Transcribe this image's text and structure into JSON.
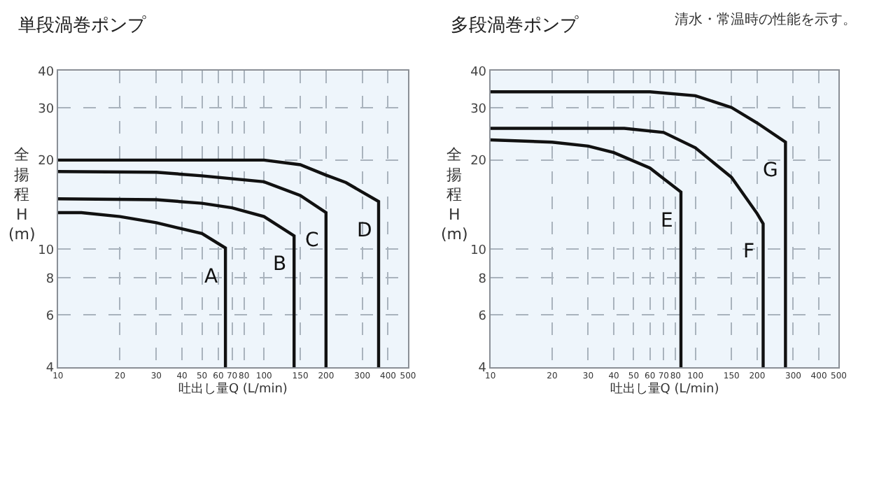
{
  "chart_data": [
    {
      "type": "line",
      "title": "単段渦巻ポンプ",
      "xlabel": "吐出し量Q (L/min)",
      "ylabel": "全揚程H(m)",
      "log": "xy",
      "grid": true,
      "line_style": "solid",
      "marker": "none",
      "legend": false,
      "xlim": [
        10,
        500
      ],
      "ylim": [
        4,
        40
      ],
      "xticks": [
        10,
        20,
        30,
        40,
        50,
        60,
        70,
        80,
        100,
        150,
        200,
        300,
        400,
        500
      ],
      "yticks": [
        4,
        6,
        8,
        10,
        20,
        30,
        40
      ],
      "series": [
        {
          "name": "A",
          "color": "#111111",
          "x": [
            10,
            13,
            20,
            30,
            50,
            65,
            65
          ],
          "values": [
            13.3,
            13.3,
            12.9,
            12.3,
            11.3,
            10.1,
            4
          ]
        },
        {
          "name": "B",
          "color": "#111111",
          "x": [
            10,
            30,
            50,
            70,
            100,
            140,
            140
          ],
          "values": [
            14.8,
            14.7,
            14.3,
            13.8,
            12.9,
            11.1,
            4
          ]
        },
        {
          "name": "C",
          "color": "#111111",
          "x": [
            10,
            30,
            50,
            100,
            150,
            200,
            200
          ],
          "values": [
            18.3,
            18.2,
            17.7,
            16.9,
            15.2,
            13.3,
            4
          ]
        },
        {
          "name": "D",
          "color": "#111111",
          "x": [
            10,
            100,
            150,
            200,
            250,
            300,
            360,
            360
          ],
          "values": [
            20,
            20,
            19.3,
            17.8,
            16.8,
            15.6,
            14.5,
            4
          ]
        }
      ]
    },
    {
      "type": "line",
      "title": "多段渦巻ポンプ",
      "xlabel": "吐出し量Q (L/min)",
      "ylabel": "全揚程H(m)",
      "log": "xy",
      "grid": true,
      "line_style": "solid",
      "marker": "none",
      "legend": false,
      "xlim": [
        10,
        500
      ],
      "ylim": [
        4,
        40
      ],
      "xticks": [
        10,
        20,
        30,
        40,
        50,
        60,
        70,
        80,
        100,
        150,
        200,
        300,
        400,
        500
      ],
      "yticks": [
        4,
        6,
        8,
        10,
        20,
        30,
        40
      ],
      "series": [
        {
          "name": "E",
          "color": "#111111",
          "x": [
            10,
            20,
            30,
            40,
            60,
            85,
            85
          ],
          "values": [
            23.4,
            23,
            22.3,
            21.2,
            18.8,
            15.6,
            4
          ]
        },
        {
          "name": "F",
          "color": "#111111",
          "x": [
            10,
            45,
            70,
            100,
            150,
            200,
            214,
            214
          ],
          "values": [
            25.6,
            25.6,
            24.8,
            22,
            17.5,
            13.2,
            12.2,
            4
          ]
        },
        {
          "name": "G",
          "color": "#111111",
          "x": [
            10,
            60,
            100,
            150,
            200,
            275,
            275
          ],
          "values": [
            34,
            34,
            33,
            30.1,
            26.7,
            23,
            4
          ]
        }
      ],
      "annotations": [
        "清水・常温時の性能を示す。"
      ]
    }
  ]
}
